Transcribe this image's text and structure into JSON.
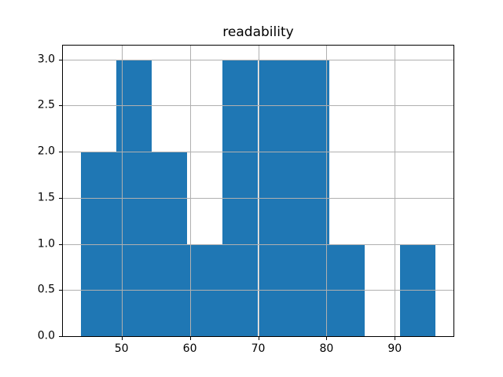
{
  "figure": {
    "background_color": "#ffffff",
    "spine_color": "#000000",
    "text_color": "#000000"
  },
  "chart_data": {
    "type": "bar",
    "subtype": "histogram",
    "title": "readability",
    "xlabel": "",
    "ylabel": "",
    "bin_edges": [
      44.0,
      49.2,
      54.4,
      59.6,
      64.8,
      70.0,
      75.2,
      80.4,
      85.6,
      90.8,
      96.0
    ],
    "counts": [
      2,
      3,
      2,
      1,
      3,
      3,
      3,
      1,
      0,
      1
    ],
    "xlim": [
      41.4,
      98.6
    ],
    "ylim": [
      0,
      3.15
    ],
    "xticks": [
      50,
      60,
      70,
      80,
      90
    ],
    "xtick_labels": [
      "50",
      "60",
      "70",
      "80",
      "90"
    ],
    "yticks": [
      0.0,
      0.5,
      1.0,
      1.5,
      2.0,
      2.5,
      3.0
    ],
    "ytick_labels": [
      "0.0",
      "0.5",
      "1.0",
      "1.5",
      "2.0",
      "2.5",
      "3.0"
    ],
    "bar_color": "#1f77b4",
    "grid": true,
    "grid_color": "#b0b0b0",
    "grid_above_bars": true,
    "legend": "none"
  }
}
